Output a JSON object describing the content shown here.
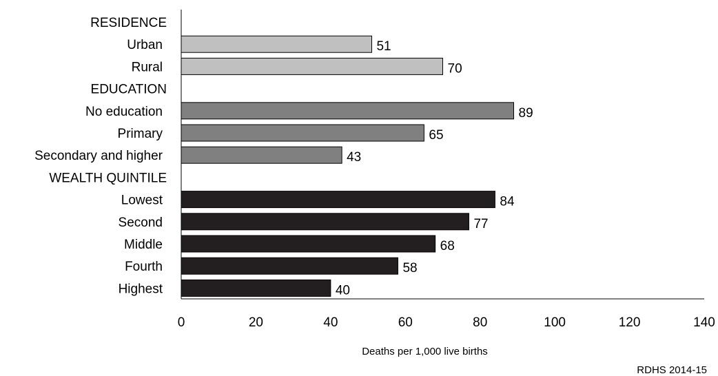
{
  "chart_data": {
    "type": "bar",
    "orientation": "horizontal",
    "xlabel": "Deaths per 1,000 live births",
    "xlim": [
      0,
      140
    ],
    "xticks": [
      0,
      20,
      40,
      60,
      80,
      100,
      120,
      140
    ],
    "grid": false,
    "legend": "none",
    "source": "RDHS 2014-15",
    "rows": [
      {
        "label": "RESIDENCE",
        "kind": "header"
      },
      {
        "label": "Urban",
        "kind": "bar",
        "value": 51,
        "color": "#c0c0c0"
      },
      {
        "label": "Rural",
        "kind": "bar",
        "value": 70,
        "color": "#c0c0c0"
      },
      {
        "label": "EDUCATION",
        "kind": "header"
      },
      {
        "label": "No education",
        "kind": "bar",
        "value": 89,
        "color": "#808080"
      },
      {
        "label": "Primary",
        "kind": "bar",
        "value": 65,
        "color": "#808080"
      },
      {
        "label": "Secondary and higher",
        "kind": "bar",
        "value": 43,
        "color": "#808080"
      },
      {
        "label": "WEALTH QUINTILE",
        "kind": "header"
      },
      {
        "label": "Lowest",
        "kind": "bar",
        "value": 84,
        "color": "#231f20"
      },
      {
        "label": "Second",
        "kind": "bar",
        "value": 77,
        "color": "#231f20"
      },
      {
        "label": "Middle",
        "kind": "bar",
        "value": 68,
        "color": "#231f20"
      },
      {
        "label": "Fourth",
        "kind": "bar",
        "value": 58,
        "color": "#231f20"
      },
      {
        "label": "Highest",
        "kind": "bar",
        "value": 40,
        "color": "#231f20"
      }
    ]
  }
}
